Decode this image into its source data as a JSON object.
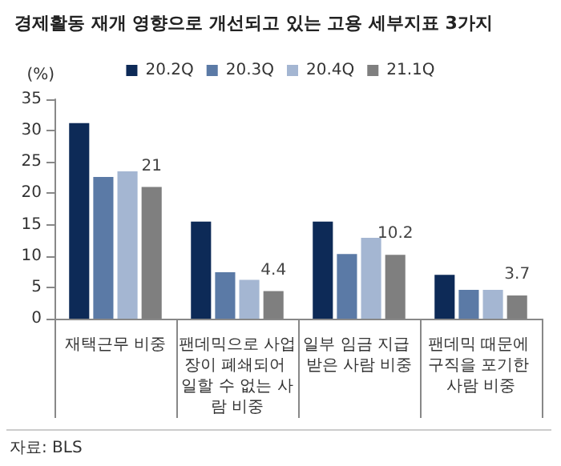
{
  "chart_data": {
    "type": "bar",
    "title": "경제활동 재개 영향으로 개선되고 있는 고용 세부지표 3가지",
    "ylabel": "(%)",
    "categories": [
      "재택근무 비중",
      "팬데믹으로 사업장이 폐쇄되어 일할 수 없는 사람 비중",
      "일부 임금 지급 받은 사람 비중",
      "팬데믹 때문에 구직을 포기한 사람 비중"
    ],
    "series": [
      {
        "name": "20.2Q",
        "color": "#0d2a57",
        "values": [
          31.2,
          15.5,
          15.5,
          7.0
        ]
      },
      {
        "name": "20.3Q",
        "color": "#5b7aa6",
        "values": [
          22.6,
          7.4,
          10.3,
          4.6
        ]
      },
      {
        "name": "20.4Q",
        "color": "#a4b6d2",
        "values": [
          23.5,
          6.2,
          12.9,
          4.6
        ]
      },
      {
        "name": "21.1Q",
        "color": "#7f7f7f",
        "values": [
          21,
          4.4,
          10.2,
          3.7
        ],
        "value_labels": [
          "21",
          "4.4",
          "10.2",
          "3.7"
        ]
      }
    ],
    "ylim": [
      0,
      35
    ],
    "yticks": [
      0,
      5,
      10,
      15,
      20,
      25,
      30,
      35
    ],
    "grid": false,
    "legend": "top",
    "annotations": [
      "자료: BLS"
    ]
  }
}
